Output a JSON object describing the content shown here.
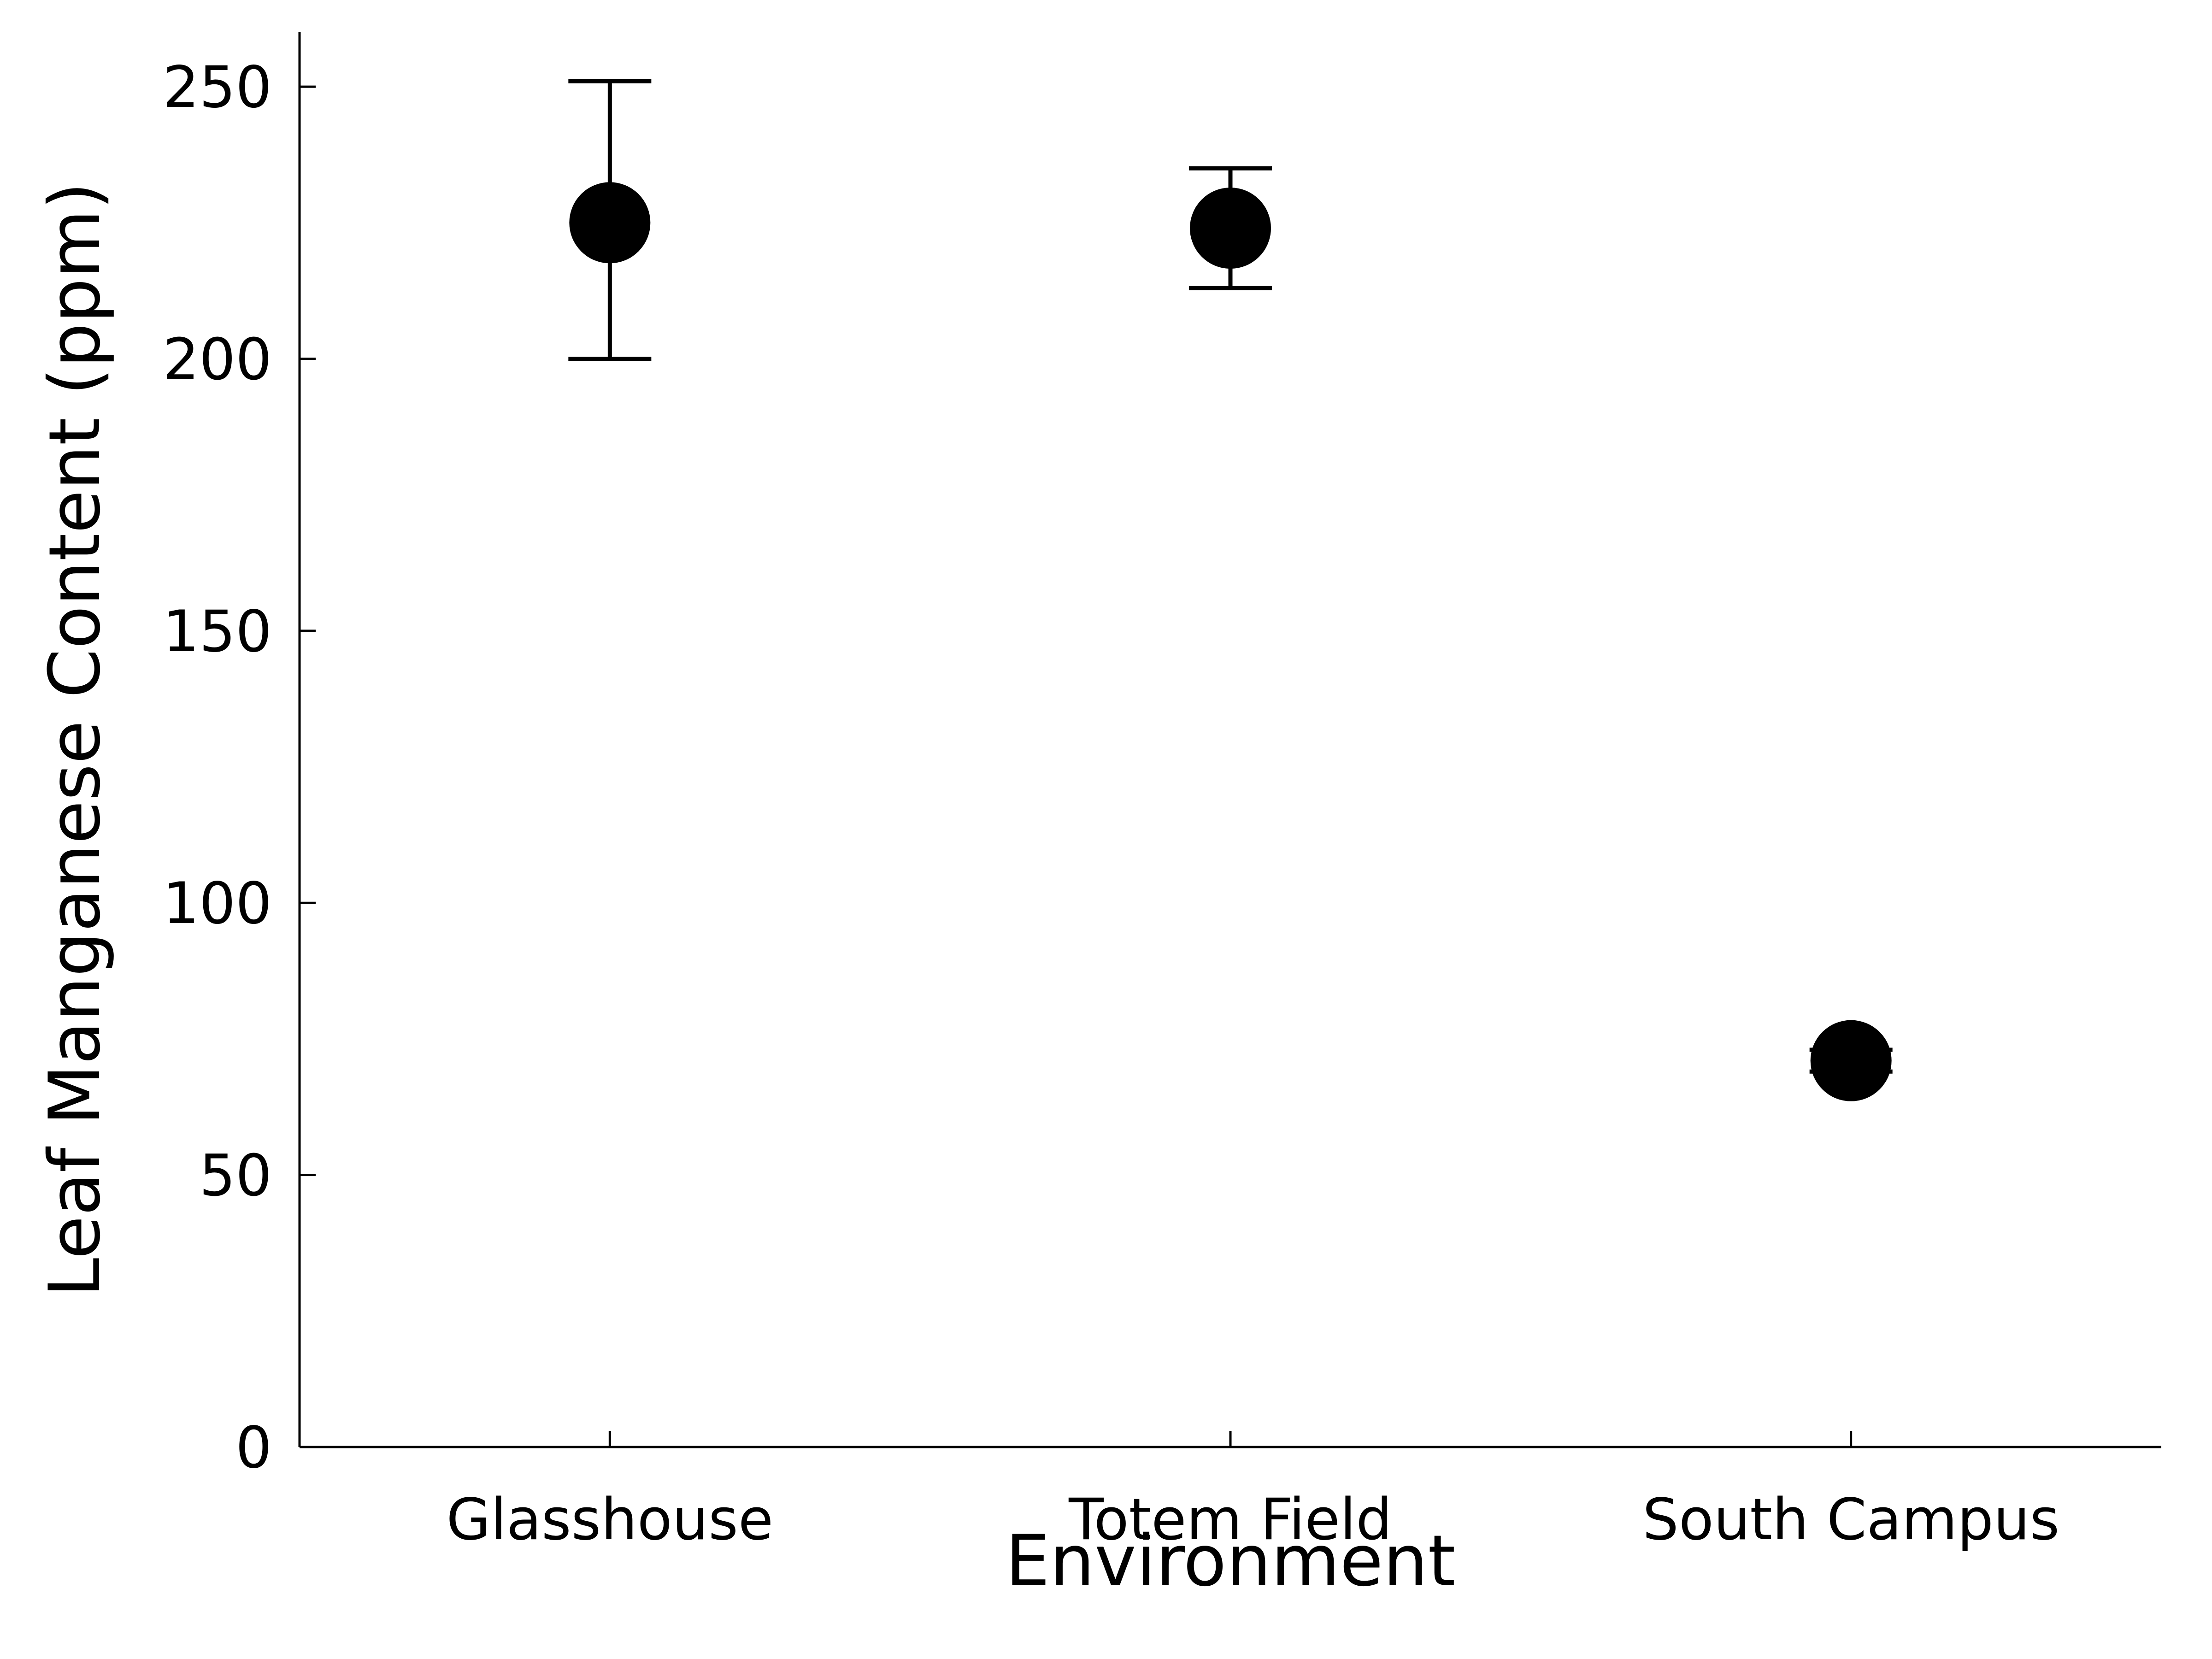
{
  "chart_data": {
    "type": "scatter",
    "title": "",
    "xlabel": "Environment",
    "ylabel": "Leaf Manganese Content (ppm)",
    "categories": [
      "Glasshouse",
      "Totem Field",
      "South Campus"
    ],
    "series": [
      {
        "values": [
          225,
          224,
          71
        ],
        "error_low": [
          200,
          213,
          69
        ],
        "error_high": [
          251,
          235,
          73
        ]
      }
    ],
    "ylim": [
      0,
      260
    ],
    "yticks": [
      "0",
      "50",
      "100",
      "150",
      "200",
      "250"
    ],
    "ytick_values": [
      0,
      50,
      100,
      150,
      200,
      250
    ],
    "grid": false,
    "legend": "none",
    "marker_color": "#000000"
  }
}
